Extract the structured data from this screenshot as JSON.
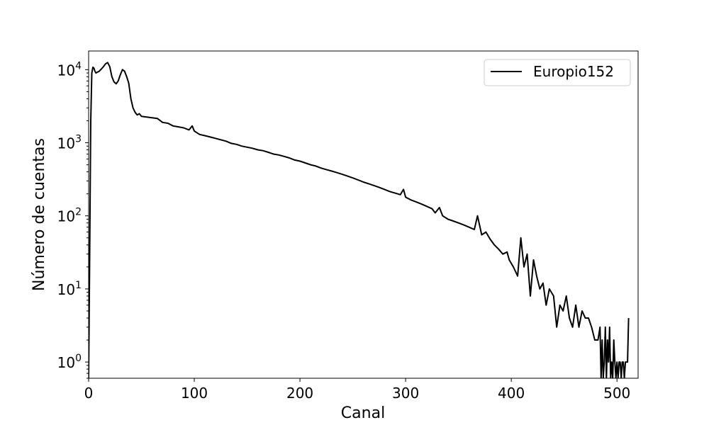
{
  "chart_data": {
    "type": "line",
    "xlabel": "Canal",
    "ylabel": "Número de cuentas",
    "xlim": [
      0,
      520
    ],
    "ylim": [
      0.6,
      18000
    ],
    "yscale": "log",
    "grid": false,
    "legend_position": "top-right",
    "x_ticks": [
      0,
      100,
      200,
      300,
      400,
      500
    ],
    "y_ticks": [
      {
        "base": "10",
        "exp": "0",
        "value": 1
      },
      {
        "base": "10",
        "exp": "1",
        "value": 10
      },
      {
        "base": "10",
        "exp": "2",
        "value": 100
      },
      {
        "base": "10",
        "exp": "3",
        "value": 1000
      },
      {
        "base": "10",
        "exp": "4",
        "value": 10000
      }
    ],
    "series": [
      {
        "name": "Europio152",
        "color": "#000000",
        "points": [
          [
            0,
            0.6
          ],
          [
            1,
            30
          ],
          [
            2,
            2000
          ],
          [
            3,
            9000
          ],
          [
            4,
            10800
          ],
          [
            5,
            10500
          ],
          [
            6,
            9500
          ],
          [
            7,
            9000
          ],
          [
            8,
            9200
          ],
          [
            10,
            9500
          ],
          [
            12,
            10200
          ],
          [
            14,
            11000
          ],
          [
            16,
            12000
          ],
          [
            18,
            12500
          ],
          [
            20,
            11000
          ],
          [
            22,
            8000
          ],
          [
            24,
            6800
          ],
          [
            26,
            6400
          ],
          [
            28,
            7000
          ],
          [
            30,
            8500
          ],
          [
            32,
            10000
          ],
          [
            34,
            9500
          ],
          [
            36,
            8000
          ],
          [
            38,
            6500
          ],
          [
            40,
            4000
          ],
          [
            42,
            3000
          ],
          [
            44,
            2600
          ],
          [
            46,
            2400
          ],
          [
            48,
            2500
          ],
          [
            50,
            2300
          ],
          [
            55,
            2250
          ],
          [
            60,
            2200
          ],
          [
            65,
            2150
          ],
          [
            70,
            1900
          ],
          [
            75,
            1850
          ],
          [
            80,
            1700
          ],
          [
            85,
            1650
          ],
          [
            90,
            1600
          ],
          [
            95,
            1500
          ],
          [
            98,
            1700
          ],
          [
            100,
            1450
          ],
          [
            105,
            1300
          ],
          [
            110,
            1250
          ],
          [
            115,
            1200
          ],
          [
            120,
            1150
          ],
          [
            125,
            1100
          ],
          [
            130,
            1050
          ],
          [
            135,
            980
          ],
          [
            140,
            950
          ],
          [
            145,
            900
          ],
          [
            150,
            870
          ],
          [
            155,
            840
          ],
          [
            160,
            800
          ],
          [
            165,
            780
          ],
          [
            170,
            740
          ],
          [
            175,
            700
          ],
          [
            180,
            680
          ],
          [
            185,
            650
          ],
          [
            190,
            620
          ],
          [
            195,
            580
          ],
          [
            200,
            560
          ],
          [
            205,
            530
          ],
          [
            210,
            500
          ],
          [
            215,
            480
          ],
          [
            220,
            450
          ],
          [
            225,
            430
          ],
          [
            230,
            410
          ],
          [
            235,
            390
          ],
          [
            240,
            370
          ],
          [
            245,
            350
          ],
          [
            250,
            330
          ],
          [
            255,
            310
          ],
          [
            260,
            290
          ],
          [
            265,
            275
          ],
          [
            270,
            260
          ],
          [
            275,
            245
          ],
          [
            280,
            230
          ],
          [
            285,
            215
          ],
          [
            290,
            205
          ],
          [
            295,
            195
          ],
          [
            298,
            230
          ],
          [
            300,
            180
          ],
          [
            305,
            165
          ],
          [
            310,
            155
          ],
          [
            315,
            145
          ],
          [
            320,
            135
          ],
          [
            325,
            125
          ],
          [
            328,
            110
          ],
          [
            332,
            130
          ],
          [
            335,
            100
          ],
          [
            340,
            90
          ],
          [
            345,
            85
          ],
          [
            350,
            80
          ],
          [
            355,
            75
          ],
          [
            360,
            70
          ],
          [
            365,
            65
          ],
          [
            368,
            100
          ],
          [
            372,
            55
          ],
          [
            376,
            60
          ],
          [
            380,
            48
          ],
          [
            384,
            40
          ],
          [
            388,
            35
          ],
          [
            392,
            30
          ],
          [
            396,
            32
          ],
          [
            398,
            25
          ],
          [
            402,
            20
          ],
          [
            406,
            15
          ],
          [
            409,
            50
          ],
          [
            412,
            20
          ],
          [
            415,
            30
          ],
          [
            418,
            8
          ],
          [
            421,
            25
          ],
          [
            424,
            15
          ],
          [
            427,
            10
          ],
          [
            430,
            12
          ],
          [
            433,
            6
          ],
          [
            436,
            10
          ],
          [
            440,
            8
          ],
          [
            443,
            3
          ],
          [
            446,
            6
          ],
          [
            449,
            5
          ],
          [
            452,
            8
          ],
          [
            455,
            4
          ],
          [
            458,
            3
          ],
          [
            461,
            6
          ],
          [
            464,
            3
          ],
          [
            467,
            5
          ],
          [
            470,
            4
          ],
          [
            473,
            4
          ],
          [
            476,
            3
          ],
          [
            479,
            2
          ],
          [
            482,
            2
          ],
          [
            484,
            3
          ],
          [
            485,
            0.6
          ],
          [
            486,
            2
          ],
          [
            487,
            0.6
          ],
          [
            488,
            1
          ],
          [
            489,
            3
          ],
          [
            490,
            0.6
          ],
          [
            491,
            2
          ],
          [
            492,
            1
          ],
          [
            493,
            3
          ],
          [
            494,
            0.6
          ],
          [
            495,
            1
          ],
          [
            496,
            0.6
          ],
          [
            497,
            2
          ],
          [
            498,
            1
          ],
          [
            499,
            0.6
          ],
          [
            500,
            1
          ],
          [
            501,
            0.6
          ],
          [
            502,
            1
          ],
          [
            503,
            1
          ],
          [
            504,
            0.6
          ],
          [
            505,
            1
          ],
          [
            506,
            1
          ],
          [
            507,
            0.6
          ],
          [
            508,
            1
          ],
          [
            509,
            1
          ],
          [
            510,
            1
          ],
          [
            511,
            4
          ]
        ]
      }
    ]
  }
}
